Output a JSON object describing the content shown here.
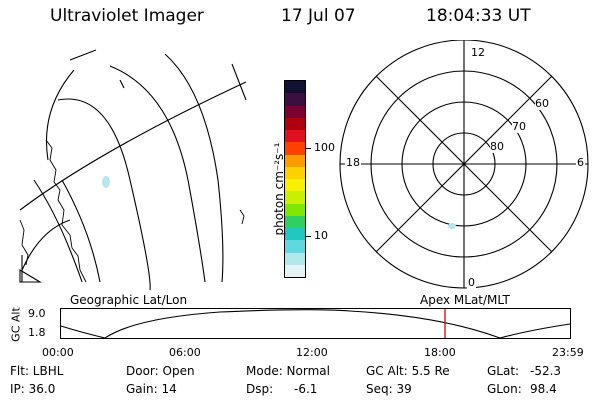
{
  "header": {
    "instrument": "Ultraviolet Imager",
    "date": "17 Jul 07",
    "time": "18:04:33 UT"
  },
  "colorbar": {
    "unit_label": "photon cm⁻²s⁻¹",
    "tick_labels": [
      "100",
      "10"
    ],
    "colors": [
      "#101030",
      "#3a1040",
      "#7a0030",
      "#b00010",
      "#e01020",
      "#ff4000",
      "#ff9a00",
      "#ffd000",
      "#f8f000",
      "#c8f000",
      "#80e800",
      "#30d060",
      "#20c8c0",
      "#60d8e0",
      "#b0e8ec",
      "#e4f4f6"
    ]
  },
  "polar": {
    "mlt_labels": {
      "top": "12",
      "bottom": "0",
      "left": "18",
      "right": "6"
    },
    "lat_labels": [
      "60",
      "70",
      "80"
    ]
  },
  "timeline": {
    "title_left": "Geographic Lat/Lon",
    "title_right": "Apex  MLat/MLT",
    "axis_label": "GC Alt",
    "y_ticks": [
      "9.0",
      "1.8"
    ],
    "x_ticks": [
      "00:00",
      "06:00",
      "12:00",
      "18:00",
      "23:59"
    ],
    "marker_time": "18:04:33",
    "marker_color": "#e00000"
  },
  "footer": {
    "filter": "Flt: LBHL",
    "ip": "IP: 36.0",
    "door": "Door: Open",
    "gain": "Gain: 14",
    "mode": "Mode: Normal",
    "dsp_label": "Dsp:",
    "dsp_value": "-6.1",
    "gc_alt": "GC Alt: 5.5 Re",
    "seq": "Seq: 39",
    "glat_label": "GLat:",
    "glat_value": "-52.3",
    "glon_label": "GLon:",
    "glon_value": "98.4"
  }
}
